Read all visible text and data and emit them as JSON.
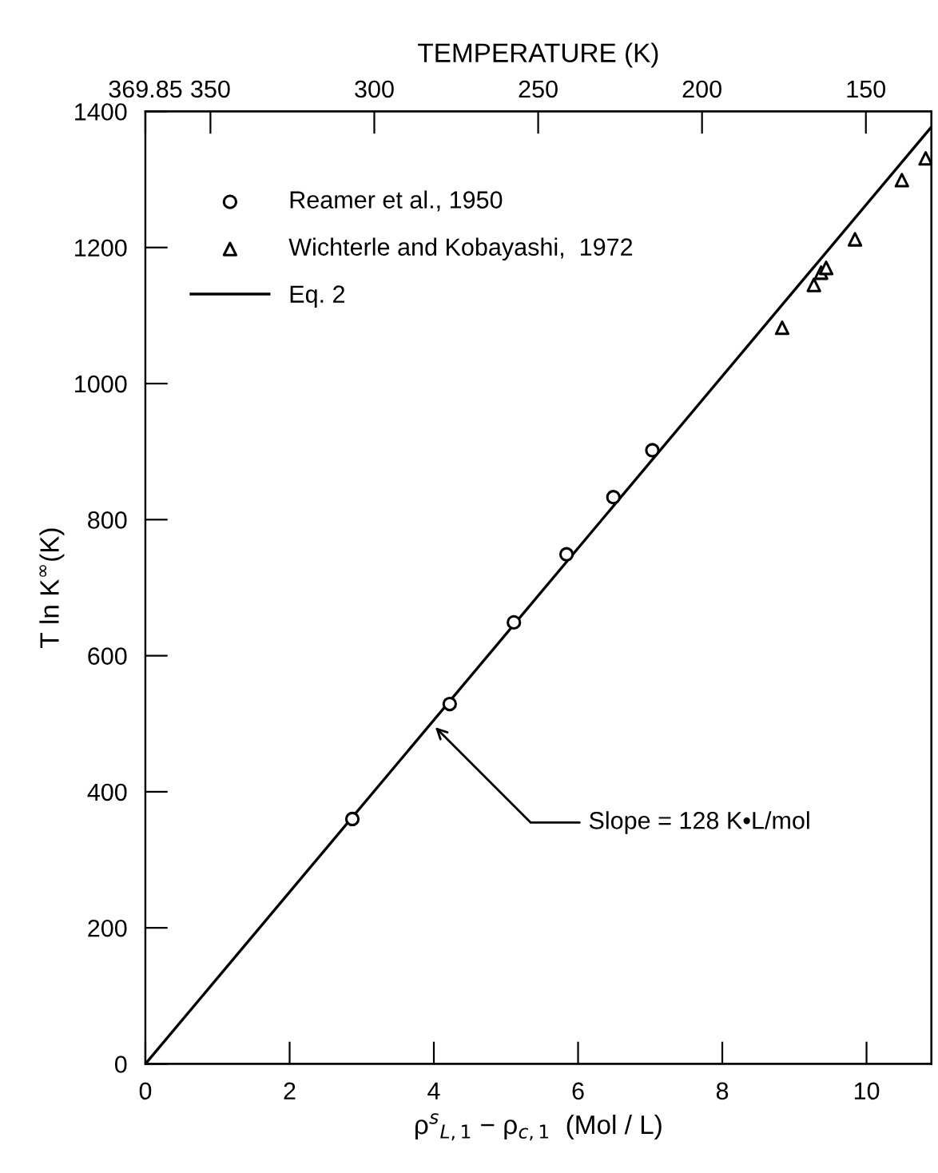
{
  "chart_data": {
    "type": "scatter",
    "xlabel": "ρ$^{s}$$_{L,1}$ − ρ$_{c,1}$  (Mol / L)",
    "ylabel": "T ln K$^{∞}$(K)",
    "x2label": "TEMPERATURE (K)",
    "xlim": [
      0,
      10.9
    ],
    "ylim": [
      0,
      1400
    ],
    "xticks": [
      0,
      2,
      4,
      6,
      8,
      10
    ],
    "yticks": [
      0,
      200,
      400,
      600,
      800,
      1000,
      1200,
      1400
    ],
    "x2lim": [
      369.85,
      130
    ],
    "x2ticks": [
      369.85,
      350,
      300,
      250,
      200,
      150
    ],
    "series": [
      {
        "name": "Reamer et al., 1950",
        "type": "scatter",
        "marker": "circle",
        "color": "#000000",
        "x": [
          2.87,
          4.22,
          5.11,
          5.84,
          6.49,
          7.03
        ],
        "values": [
          360,
          529,
          649,
          749,
          833,
          902
        ]
      },
      {
        "name": "Wichterle and Kobayashi,  1972",
        "type": "scatter",
        "marker": "triangle",
        "color": "#000000",
        "x": [
          8.83,
          9.27,
          9.37,
          9.44,
          9.84,
          10.49,
          10.82
        ],
        "values": [
          1082,
          1145,
          1163,
          1170,
          1212,
          1299,
          1331
        ]
      },
      {
        "name": "Eq. 2",
        "type": "line",
        "marker": "none",
        "line_style": "solid",
        "color": "#000000",
        "x": [
          0,
          10.89
        ],
        "values": [
          0,
          1376
        ]
      }
    ],
    "annotations": [
      {
        "text": "Slope = 128 K•L/mol",
        "x": 4.02,
        "y": 495
      }
    ],
    "legend": "top left",
    "grid": false
  }
}
